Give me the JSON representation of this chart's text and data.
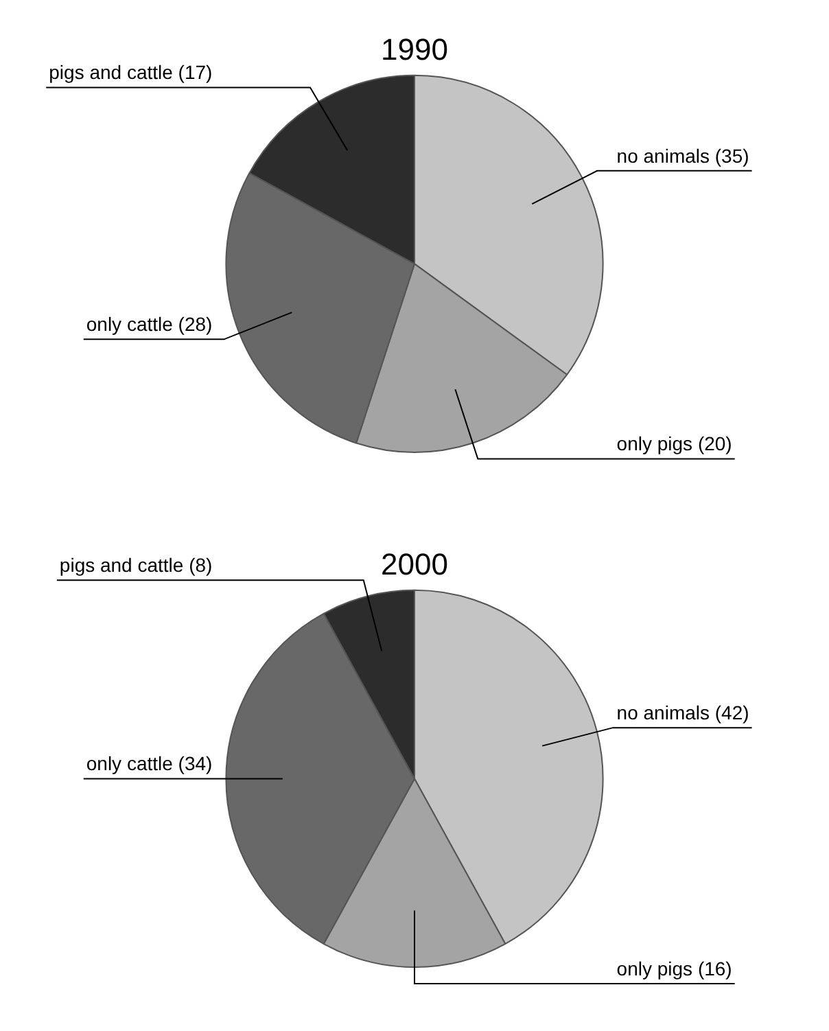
{
  "chart_data": [
    {
      "type": "pie",
      "title": "1990",
      "categories": [
        "no animals",
        "only pigs",
        "only cattle",
        "pigs and cattle"
      ],
      "values": [
        35,
        20,
        28,
        17
      ],
      "value_labels": [
        "(35)",
        "(20)",
        "(28)",
        "(17)"
      ],
      "colors": [
        "#c4c4c4",
        "#a4a4a4",
        "#686868",
        "#2c2c2c"
      ],
      "legend": false
    },
    {
      "type": "pie",
      "title": "2000",
      "categories": [
        "no animals",
        "only pigs",
        "only cattle",
        "pigs and cattle"
      ],
      "values": [
        42,
        16,
        34,
        8
      ],
      "value_labels": [
        "(42)",
        "(16)",
        "(34)",
        "(8)"
      ],
      "colors": [
        "#c4c4c4",
        "#a4a4a4",
        "#686868",
        "#2c2c2c"
      ],
      "legend": false
    }
  ]
}
